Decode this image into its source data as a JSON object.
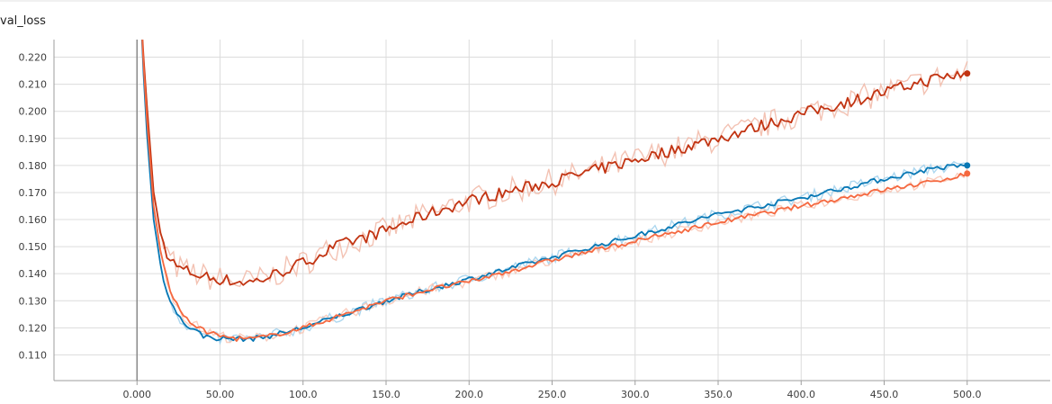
{
  "chart_data": {
    "type": "line",
    "title": "val_loss",
    "xlim": [
      -50,
      550
    ],
    "ylim": [
      0.1005,
      0.2265
    ],
    "x_ticks": [
      "0.000",
      "50.00",
      "100.0",
      "150.0",
      "200.0",
      "250.0",
      "300.0",
      "350.0",
      "400.0",
      "450.0",
      "500.0"
    ],
    "x_tick_values": [
      0,
      50,
      100,
      150,
      200,
      250,
      300,
      350,
      400,
      450,
      500
    ],
    "y_ticks": [
      "0.110",
      "0.120",
      "0.130",
      "0.140",
      "0.150",
      "0.160",
      "0.170",
      "0.180",
      "0.190",
      "0.200",
      "0.210",
      "0.220"
    ],
    "y_tick_values": [
      0.11,
      0.12,
      0.13,
      0.14,
      0.15,
      0.16,
      0.17,
      0.18,
      0.19,
      0.2,
      0.21,
      0.22
    ],
    "grid": true,
    "series": [
      {
        "color": "#c23412",
        "raw_color": "#f1b7a6",
        "x": [
          2,
          5,
          10,
          15,
          20,
          25,
          30,
          40,
          50,
          60,
          70,
          80,
          100,
          120,
          150,
          175,
          200,
          250,
          300,
          350,
          400,
          450,
          480,
          500
        ],
        "values": [
          0.24,
          0.21,
          0.17,
          0.152,
          0.145,
          0.142,
          0.141,
          0.139,
          0.138,
          0.137,
          0.137,
          0.139,
          0.144,
          0.15,
          0.156,
          0.162,
          0.167,
          0.174,
          0.182,
          0.19,
          0.199,
          0.207,
          0.212,
          0.214
        ]
      },
      {
        "color": "#0878b5",
        "raw_color": "#9fd0ec",
        "x": [
          2,
          5,
          10,
          15,
          20,
          25,
          30,
          40,
          50,
          60,
          70,
          80,
          100,
          120,
          150,
          175,
          200,
          250,
          300,
          350,
          400,
          450,
          480,
          500
        ],
        "values": [
          0.24,
          0.2,
          0.16,
          0.14,
          0.13,
          0.124,
          0.121,
          0.117,
          0.116,
          0.116,
          0.116,
          0.117,
          0.12,
          0.124,
          0.13,
          0.134,
          0.138,
          0.146,
          0.154,
          0.162,
          0.168,
          0.175,
          0.179,
          0.18
        ]
      },
      {
        "color": "#f5683f",
        "raw_color": "#f9c4b3",
        "x": [
          2,
          5,
          10,
          15,
          20,
          25,
          30,
          40,
          50,
          60,
          70,
          80,
          100,
          120,
          150,
          175,
          200,
          250,
          300,
          350,
          400,
          450,
          480,
          500
        ],
        "values": [
          0.24,
          0.205,
          0.165,
          0.145,
          0.134,
          0.127,
          0.123,
          0.119,
          0.117,
          0.116,
          0.116,
          0.117,
          0.12,
          0.124,
          0.13,
          0.134,
          0.137,
          0.145,
          0.152,
          0.159,
          0.165,
          0.171,
          0.174,
          0.177
        ]
      }
    ]
  }
}
